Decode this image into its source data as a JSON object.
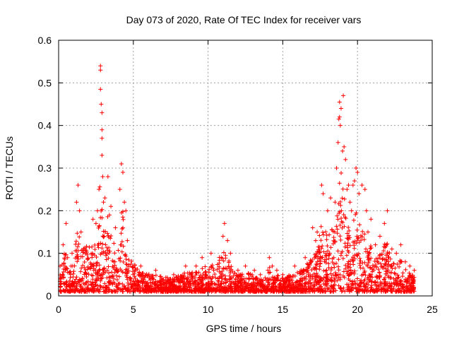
{
  "chart_data": {
    "type": "scatter",
    "title": "Day 073 of 2020, Rate Of TEC Index for receiver vars",
    "xlabel": "GPS time / hours",
    "ylabel": "ROTI / TECUs",
    "xlim": [
      0,
      25
    ],
    "ylim": [
      0,
      0.6
    ],
    "x_ticks": [
      0,
      5,
      10,
      15,
      20,
      25
    ],
    "x_tick_labels": [
      "0",
      "5",
      "10",
      "15",
      "20",
      "25"
    ],
    "y_ticks": [
      0,
      0.1,
      0.2,
      0.3,
      0.4,
      0.5,
      0.6
    ],
    "y_tick_labels": [
      "0",
      "0.1",
      "0.2",
      "0.3",
      "0.4",
      "0.5",
      "0.6"
    ],
    "grid": true,
    "marker": "+",
    "color": "#ff0000",
    "series": [
      {
        "name": "vars",
        "x": [
          0.1,
          0.3,
          0.5,
          0.6,
          0.9,
          1.2,
          1.3,
          1.4,
          1.5,
          2.3,
          2.5,
          2.6,
          2.7,
          2.8,
          2.8,
          2.8,
          2.85,
          2.9,
          2.9,
          2.9,
          2.9,
          2.95,
          3.0,
          3.1,
          3.3,
          3.4,
          3.5,
          3.8,
          4.1,
          4.2,
          4.3,
          4.4,
          4.5,
          4.6,
          5.5,
          6.5,
          7.7,
          8.5,
          9.2,
          9.6,
          10.2,
          11.0,
          11.1,
          11.3,
          11.5,
          12.0,
          12.5,
          13.1,
          13.5,
          14.0,
          14.1,
          14.3,
          14.6,
          15.0,
          15.8,
          16.5,
          17.0,
          17.2,
          17.3,
          17.6,
          17.7,
          18.0,
          18.2,
          18.5,
          18.6,
          18.7,
          18.75,
          18.8,
          18.8,
          18.85,
          18.9,
          19.0,
          19.05,
          19.1,
          19.2,
          19.3,
          19.4,
          19.5,
          19.6,
          19.7,
          19.8,
          19.9,
          20.0,
          20.1,
          20.3,
          20.5,
          20.6,
          20.7,
          20.9,
          21.2,
          21.5,
          21.8,
          22.0,
          22.3,
          22.6,
          22.9,
          23.2,
          23.5,
          23.8
        ],
        "y": [
          0.07,
          0.12,
          0.17,
          0.09,
          0.1,
          0.22,
          0.26,
          0.2,
          0.15,
          0.18,
          0.17,
          0.2,
          0.25,
          0.53,
          0.54,
          0.485,
          0.45,
          0.43,
          0.39,
          0.37,
          0.33,
          0.28,
          0.22,
          0.23,
          0.28,
          0.19,
          0.21,
          0.16,
          0.25,
          0.31,
          0.29,
          0.22,
          0.2,
          0.13,
          0.07,
          0.06,
          0.05,
          0.07,
          0.07,
          0.09,
          0.1,
          0.14,
          0.17,
          0.13,
          0.1,
          0.06,
          0.07,
          0.06,
          0.05,
          0.06,
          0.09,
          0.07,
          0.06,
          0.05,
          0.07,
          0.09,
          0.16,
          0.13,
          0.15,
          0.26,
          0.24,
          0.2,
          0.23,
          0.22,
          0.3,
          0.36,
          0.415,
          0.455,
          0.42,
          0.4,
          0.44,
          0.34,
          0.47,
          0.35,
          0.32,
          0.25,
          0.26,
          0.22,
          0.2,
          0.26,
          0.27,
          0.3,
          0.29,
          0.24,
          0.26,
          0.25,
          0.2,
          0.15,
          0.18,
          0.12,
          0.14,
          0.17,
          0.2,
          0.11,
          0.1,
          0.12,
          0.08,
          0.07,
          0.06
        ]
      }
    ]
  }
}
